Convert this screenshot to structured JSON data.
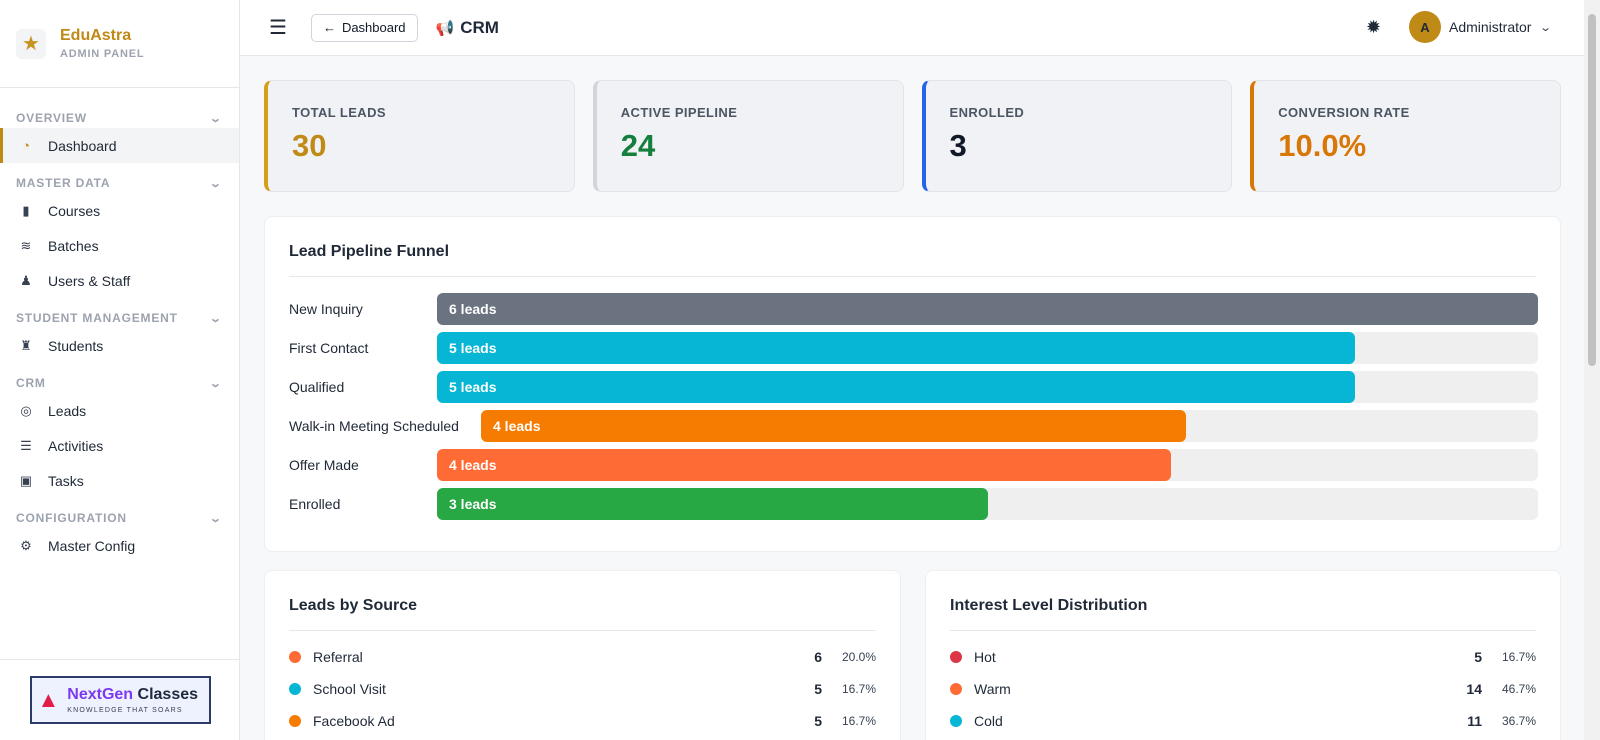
{
  "brand": {
    "name": "EduAstra",
    "subtitle": "ADMIN PANEL"
  },
  "sidebar": {
    "sections": [
      {
        "title": "OVERVIEW",
        "items": [
          {
            "label": "Dashboard",
            "icon": "dashboard-icon",
            "active": true
          }
        ]
      },
      {
        "title": "MASTER DATA",
        "items": [
          {
            "label": "Courses",
            "icon": "book-icon"
          },
          {
            "label": "Batches",
            "icon": "layers-icon"
          },
          {
            "label": "Users & Staff",
            "icon": "user-icon"
          }
        ]
      },
      {
        "title": "STUDENT MANAGEMENT",
        "items": [
          {
            "label": "Students",
            "icon": "graduate-icon"
          }
        ]
      },
      {
        "title": "CRM",
        "items": [
          {
            "label": "Leads",
            "icon": "target-icon"
          },
          {
            "label": "Activities",
            "icon": "list-icon"
          },
          {
            "label": "Tasks",
            "icon": "clipboard-icon"
          }
        ]
      },
      {
        "title": "CONFIGURATION",
        "items": [
          {
            "label": "Master Config",
            "icon": "gear-icon"
          }
        ]
      }
    ],
    "promo": {
      "title_part1": "NextGen",
      "title_part2": " Classes",
      "tagline": "KNOWLEDGE THAT SOARS"
    }
  },
  "topbar": {
    "back_label": "Dashboard",
    "page_title": "CRM",
    "user_initial": "A",
    "user_name": "Administrator"
  },
  "stats": [
    {
      "label": "TOTAL LEADS",
      "value": "30",
      "color": "#c08a16",
      "border": "#d4a017"
    },
    {
      "label": "ACTIVE PIPELINE",
      "value": "24",
      "color": "#15803d",
      "border": "#d1d5db"
    },
    {
      "label": "ENROLLED",
      "value": "3",
      "color": "#111827",
      "border": "#2563eb"
    },
    {
      "label": "CONVERSION RATE",
      "value": "10.0%",
      "color": "#d97706",
      "border": "#d97706"
    }
  ],
  "funnel": {
    "title": "Lead Pipeline Funnel",
    "max": 6,
    "stages": [
      {
        "label": "New Inquiry",
        "count": 6,
        "bar_label": "6 leads",
        "color": "#6b7280"
      },
      {
        "label": "First Contact",
        "count": 5,
        "bar_label": "5 leads",
        "color": "#06b6d4"
      },
      {
        "label": "Qualified",
        "count": 5,
        "bar_label": "5 leads",
        "color": "#06b6d4"
      },
      {
        "label": "Walk-in Meeting Scheduled",
        "count": 4,
        "bar_label": "4 leads",
        "color": "#f57c00"
      },
      {
        "label": "Offer Made",
        "count": 4,
        "bar_label": "4 leads",
        "color": "#ff6b35"
      },
      {
        "label": "Enrolled",
        "count": 3,
        "bar_label": "3 leads",
        "color": "#28a745"
      }
    ]
  },
  "sources": {
    "title": "Leads by Source",
    "items": [
      {
        "name": "Referral",
        "count": "6",
        "pct": "20.0%",
        "color": "#ff6b35"
      },
      {
        "name": "School Visit",
        "count": "5",
        "pct": "16.7%",
        "color": "#06b6d4"
      },
      {
        "name": "Facebook Ad",
        "count": "5",
        "pct": "16.7%",
        "color": "#f57c00"
      }
    ]
  },
  "interest": {
    "title": "Interest Level Distribution",
    "items": [
      {
        "name": "Hot",
        "count": "5",
        "pct": "16.7%",
        "color": "#dc3545"
      },
      {
        "name": "Warm",
        "count": "14",
        "pct": "46.7%",
        "color": "#ff6b35"
      },
      {
        "name": "Cold",
        "count": "11",
        "pct": "36.7%",
        "color": "#06b6d4"
      }
    ]
  }
}
